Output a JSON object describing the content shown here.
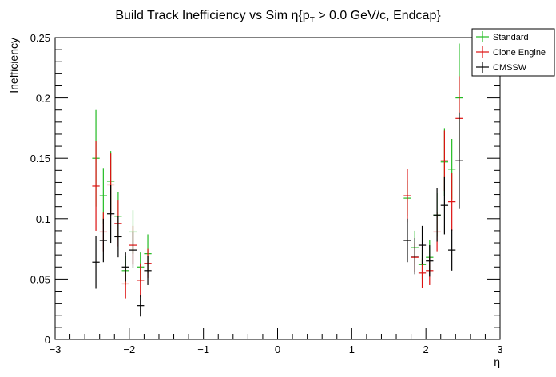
{
  "chart_data": {
    "type": "scatter",
    "title_main": "Build Track Inefficiency vs Sim η{p",
    "title_sub": "T",
    "title_rest": " > 0.0 GeV/c, Endcap}",
    "xlabel": "η",
    "ylabel": "Inefficiency",
    "xlim": [
      -3,
      3
    ],
    "ylim": [
      0,
      0.25
    ],
    "x_ticks": [
      -3,
      -2,
      -1,
      0,
      1,
      2,
      3
    ],
    "x_tick_labels": [
      "−3",
      "−2",
      "−1",
      "0",
      "1",
      "2",
      "3"
    ],
    "y_ticks": [
      0,
      0.05,
      0.1,
      0.15,
      0.2,
      0.25
    ],
    "y_tick_labels": [
      "0",
      "0.05",
      "0.1",
      "0.15",
      "0.2",
      "0.25"
    ],
    "legend_position": "top-right",
    "bin_half_width": 0.05,
    "series": [
      {
        "name": "Standard",
        "color": "#22bb22",
        "points": [
          {
            "x": -2.45,
            "y": 0.15,
            "err": 0.04
          },
          {
            "x": -2.35,
            "y": 0.119,
            "err": 0.023
          },
          {
            "x": -2.25,
            "y": 0.131,
            "err": 0.025
          },
          {
            "x": -2.15,
            "y": 0.102,
            "err": 0.02
          },
          {
            "x": -2.05,
            "y": 0.057,
            "err": 0.012
          },
          {
            "x": -1.95,
            "y": 0.089,
            "err": 0.018
          },
          {
            "x": -1.85,
            "y": 0.06,
            "err": 0.012
          },
          {
            "x": -1.75,
            "y": 0.071,
            "err": 0.016
          },
          {
            "x": 1.75,
            "y": 0.117,
            "err": 0.015
          },
          {
            "x": 1.85,
            "y": 0.076,
            "err": 0.014
          },
          {
            "x": 1.95,
            "y": 0.062,
            "err": 0.012
          },
          {
            "x": 2.05,
            "y": 0.068,
            "err": 0.014
          },
          {
            "x": 2.15,
            "y": 0.103,
            "err": 0.018
          },
          {
            "x": 2.25,
            "y": 0.147,
            "err": 0.028
          },
          {
            "x": 2.35,
            "y": 0.141,
            "err": 0.025
          },
          {
            "x": 2.45,
            "y": 0.2,
            "err": 0.045
          }
        ]
      },
      {
        "name": "Clone Engine",
        "color": "#dd1111",
        "points": [
          {
            "x": -2.45,
            "y": 0.127,
            "err": 0.037
          },
          {
            "x": -2.35,
            "y": 0.089,
            "err": 0.016
          },
          {
            "x": -2.25,
            "y": 0.128,
            "err": 0.026
          },
          {
            "x": -2.15,
            "y": 0.096,
            "err": 0.019
          },
          {
            "x": -2.05,
            "y": 0.046,
            "err": 0.012
          },
          {
            "x": -1.95,
            "y": 0.078,
            "err": 0.016
          },
          {
            "x": -1.85,
            "y": 0.049,
            "err": 0.014
          },
          {
            "x": -1.75,
            "y": 0.063,
            "err": 0.012
          },
          {
            "x": 1.75,
            "y": 0.119,
            "err": 0.022
          },
          {
            "x": 1.85,
            "y": 0.068,
            "err": 0.012
          },
          {
            "x": 1.95,
            "y": 0.055,
            "err": 0.012
          },
          {
            "x": 2.05,
            "y": 0.057,
            "err": 0.012
          },
          {
            "x": 2.15,
            "y": 0.089,
            "err": 0.016
          },
          {
            "x": 2.25,
            "y": 0.148,
            "err": 0.025
          },
          {
            "x": 2.35,
            "y": 0.114,
            "err": 0.024
          },
          {
            "x": 2.45,
            "y": 0.183,
            "err": 0.035
          }
        ]
      },
      {
        "name": "CMSSW",
        "color": "#000000",
        "points": [
          {
            "x": -2.45,
            "y": 0.064,
            "err": 0.022
          },
          {
            "x": -2.35,
            "y": 0.082,
            "err": 0.018
          },
          {
            "x": -2.25,
            "y": 0.104,
            "err": 0.024
          },
          {
            "x": -2.15,
            "y": 0.085,
            "err": 0.017
          },
          {
            "x": -2.05,
            "y": 0.06,
            "err": 0.012
          },
          {
            "x": -1.95,
            "y": 0.074,
            "err": 0.015
          },
          {
            "x": -1.85,
            "y": 0.028,
            "err": 0.009
          },
          {
            "x": -1.75,
            "y": 0.057,
            "err": 0.012
          },
          {
            "x": 1.75,
            "y": 0.082,
            "err": 0.018
          },
          {
            "x": 1.85,
            "y": 0.069,
            "err": 0.015
          },
          {
            "x": 1.95,
            "y": 0.078,
            "err": 0.016
          },
          {
            "x": 2.05,
            "y": 0.065,
            "err": 0.013
          },
          {
            "x": 2.15,
            "y": 0.103,
            "err": 0.022
          },
          {
            "x": 2.25,
            "y": 0.111,
            "err": 0.024
          },
          {
            "x": 2.35,
            "y": 0.074,
            "err": 0.017
          },
          {
            "x": 2.45,
            "y": 0.148,
            "err": 0.04
          }
        ]
      }
    ]
  }
}
